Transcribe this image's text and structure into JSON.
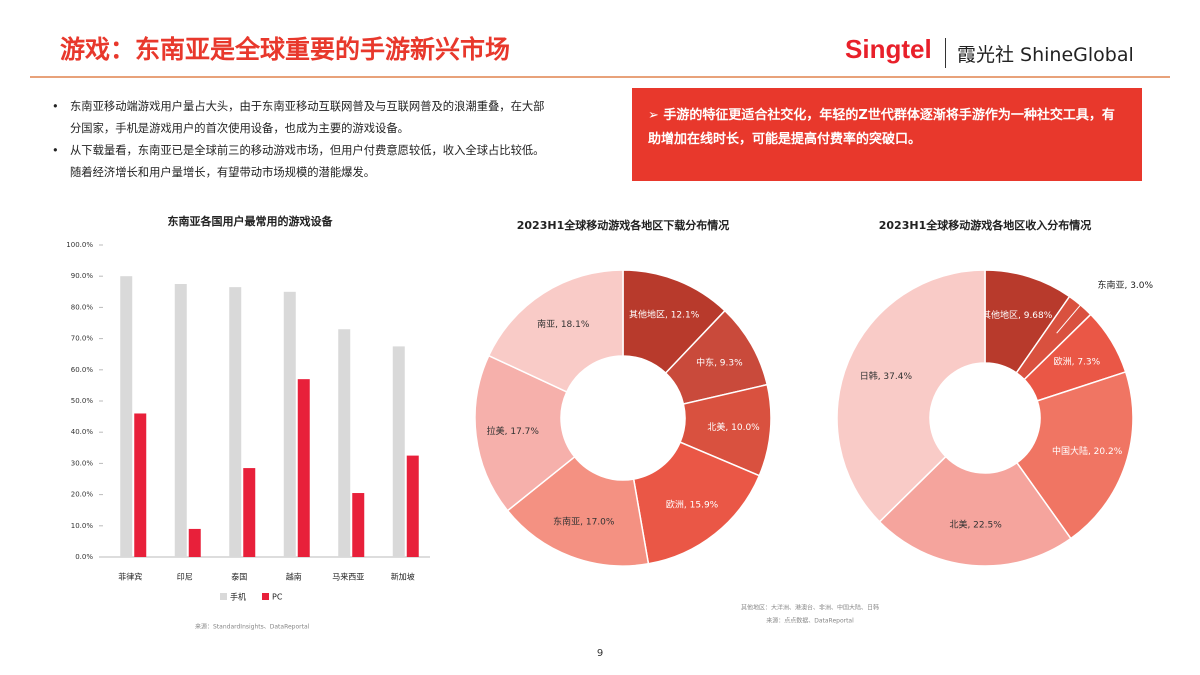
{
  "header": {
    "title": "游戏：东南亚是全球重要的手游新兴市场",
    "logo": "Singtel",
    "brand": "霞光社 ShineGlobal"
  },
  "bullets": [
    "东南亚移动端游戏用户量占大头，由于东南亚移动互联网普及与互联网普及的浪潮重叠，在大部分国家，手机是游戏用户的首次使用设备，也成为主要的游戏设备。",
    "从下载量看，东南亚已是全球前三的移动游戏市场，但用户付费意愿较低，收入全球占比较低。随着经济增长和用户量增长，有望带动市场规模的潜能爆发。"
  ],
  "callout": "手游的特征更适合社交化，年轻的Z世代群体逐渐将手游作为一种社交工具，有助增加在线时长，可能是提高付费率的突破口。",
  "chart_data": [
    {
      "type": "bar",
      "title": "东南亚各国用户最常用的游戏设备",
      "categories": [
        "菲律宾",
        "印尼",
        "泰国",
        "越南",
        "马来西亚",
        "新加坡"
      ],
      "series": [
        {
          "name": "手机",
          "color": "#d9d9d9",
          "values": [
            90,
            87.5,
            86.5,
            85,
            73,
            67.5
          ]
        },
        {
          "name": "PC",
          "color": "#e8203a",
          "values": [
            46,
            9,
            28.5,
            57,
            20.5,
            32.5
          ]
        }
      ],
      "ylim": [
        0,
        100
      ],
      "yticks": [
        {
          "value": 0,
          "label": "0.0%"
        },
        {
          "value": 10,
          "label": "10.0%"
        },
        {
          "value": 20,
          "label": "20.0%"
        },
        {
          "value": 30,
          "label": "30.0%"
        },
        {
          "value": 40,
          "label": "40.0%"
        },
        {
          "value": 50,
          "label": "50.0%"
        },
        {
          "value": 60,
          "label": "60.0%"
        },
        {
          "value": 70,
          "label": "70.0%"
        },
        {
          "value": 80,
          "label": "80.0%"
        },
        {
          "value": 90,
          "label": "90.0%"
        },
        {
          "value": 100,
          "label": "100.0%"
        }
      ],
      "legend": "bottom",
      "source": "来源：StandardInsights、DataReportal"
    },
    {
      "type": "pie",
      "title": "2023H1全球移动游戏各地区下载分布情况",
      "values": [
        12.1,
        9.3,
        10.0,
        15.9,
        17.0,
        17.7,
        18.1
      ],
      "value_labels": [
        "其他地区, 12.1%",
        "中东, 9.3%",
        "北美, 10.0%",
        "欧洲, 15.9%",
        "东南亚, 17.0%",
        "拉美, 17.7%",
        "南亚, 18.1%"
      ],
      "colors": [
        "#b83a2c",
        "#c94a3b",
        "#d9513f",
        "#ea5746",
        "#f49182",
        "#f6b0ab",
        "#f9cbc7"
      ]
    },
    {
      "type": "pie",
      "title": "2023H1全球移动游戏各地区收入分布情况",
      "values": [
        9.68,
        3.0,
        7.3,
        20.2,
        22.5,
        37.4
      ],
      "value_labels": [
        "其他地区, 9.68%",
        "东南亚, 3.0%",
        "欧洲, 7.3%",
        "中国大陆, 20.2%",
        "北美, 22.5%",
        "日韩, 37.4%"
      ],
      "colors": [
        "#b83a2c",
        "#d9513f",
        "#ea5746",
        "#f07563",
        "#f5a49d",
        "#f9cbc7"
      ],
      "notes": [
        "其他地区：大洋洲、港澳台、非洲、中国大陆、日韩",
        "来源：点点数据、DataReportal"
      ]
    }
  ],
  "page_number": "9"
}
